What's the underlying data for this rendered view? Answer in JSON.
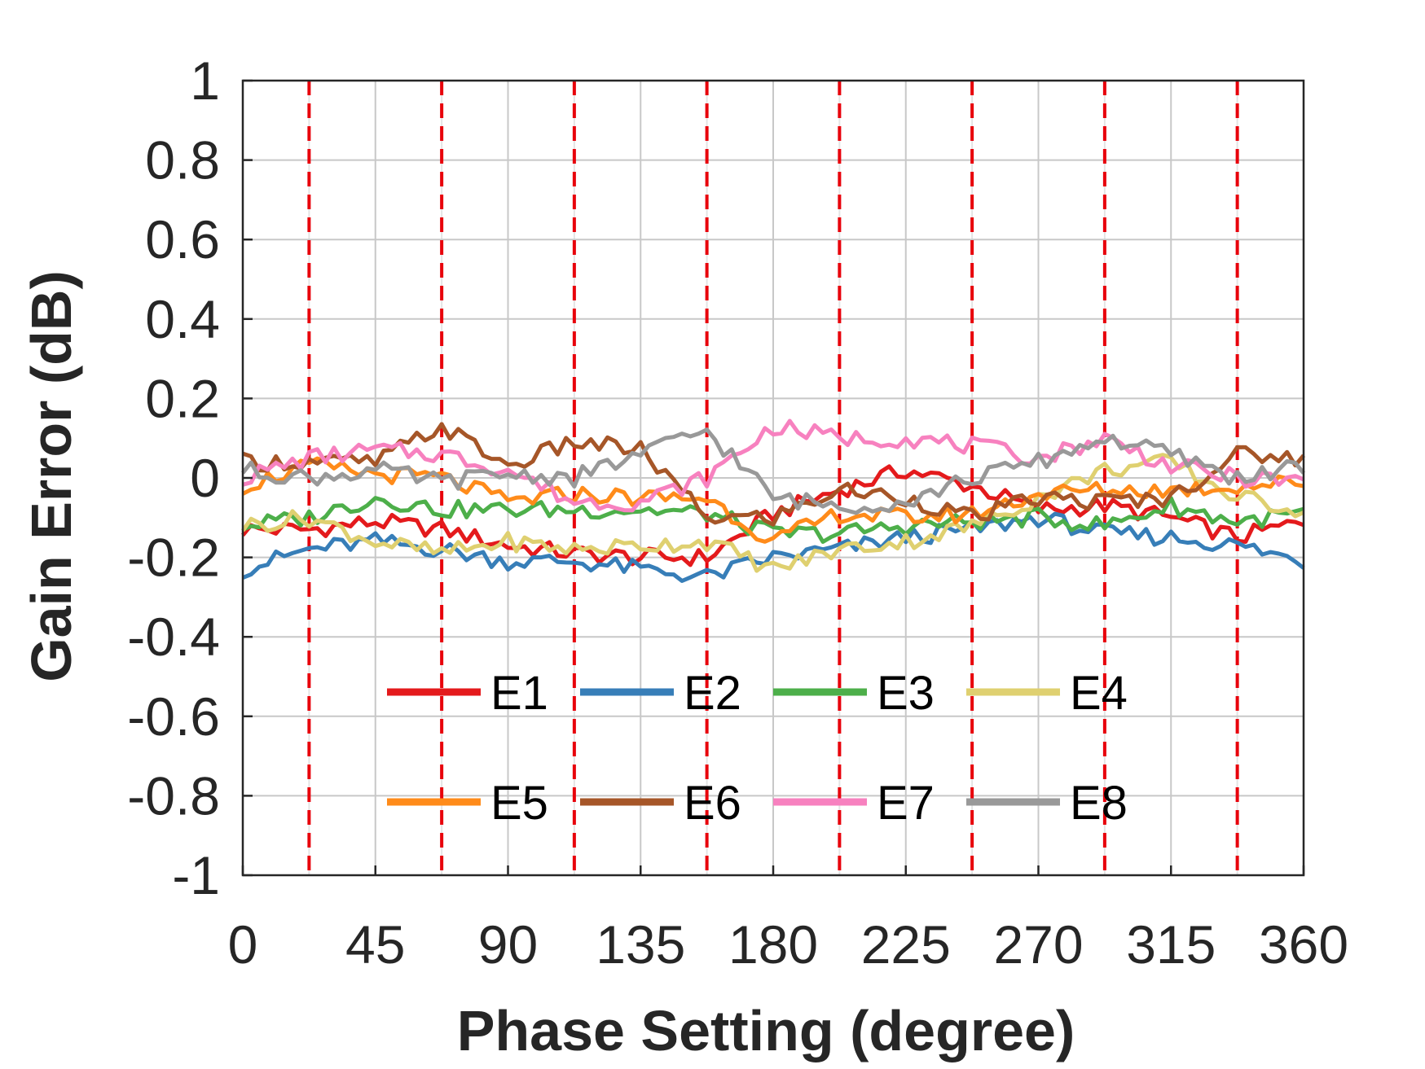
{
  "chart_data": {
    "type": "line",
    "title": "",
    "xlabel": "Phase Setting (degree)",
    "ylabel": "Gain Error (dB)",
    "xlim": [
      0,
      360
    ],
    "ylim": [
      -1,
      1
    ],
    "x_ticks": [
      0,
      45,
      90,
      135,
      180,
      225,
      270,
      315,
      360
    ],
    "x_tick_labels": [
      "0",
      "45",
      "90",
      "135",
      "180",
      "225",
      "270",
      "315",
      "360"
    ],
    "y_ticks": [
      -1,
      -0.8,
      -0.6,
      -0.4,
      -0.2,
      0,
      0.2,
      0.4,
      0.6,
      0.8,
      1
    ],
    "y_tick_labels": [
      "-1",
      "-0.8",
      "-0.6",
      "-0.4",
      "-0.2",
      "0",
      "0.2",
      "0.4",
      "0.6",
      "0.8",
      "1"
    ],
    "grid": true,
    "vertical_reference_lines": [
      22.5,
      67.5,
      112.5,
      157.5,
      202.5,
      247.5,
      292.5,
      337.5
    ],
    "reference_line_color": "#e8000b",
    "legend_placement": "lower-center",
    "series": [
      {
        "name": "E1",
        "color": "#e41a1c",
        "x": [
          0,
          22.5,
          45,
          67.5,
          90,
          112.5,
          135,
          157.5,
          180,
          202.5,
          225,
          247.5,
          270,
          292.5,
          315,
          337.5,
          360
        ],
        "values": [
          -0.13,
          -0.13,
          -0.11,
          -0.13,
          -0.17,
          -0.19,
          -0.2,
          -0.2,
          -0.09,
          -0.03,
          0.02,
          -0.02,
          -0.08,
          -0.07,
          -0.1,
          -0.15,
          -0.11
        ]
      },
      {
        "name": "E2",
        "color": "#377eb8",
        "x": [
          0,
          22.5,
          45,
          67.5,
          90,
          112.5,
          135,
          157.5,
          180,
          202.5,
          225,
          247.5,
          270,
          292.5,
          315,
          337.5,
          360
        ],
        "values": [
          -0.23,
          -0.18,
          -0.16,
          -0.18,
          -0.21,
          -0.21,
          -0.23,
          -0.25,
          -0.2,
          -0.18,
          -0.15,
          -0.13,
          -0.1,
          -0.14,
          -0.15,
          -0.17,
          -0.21
        ]
      },
      {
        "name": "E3",
        "color": "#4daf4a",
        "x": [
          0,
          22.5,
          45,
          67.5,
          90,
          112.5,
          135,
          157.5,
          180,
          202.5,
          225,
          247.5,
          270,
          292.5,
          315,
          337.5,
          360
        ],
        "values": [
          -0.12,
          -0.1,
          -0.05,
          -0.08,
          -0.08,
          -0.08,
          -0.08,
          -0.09,
          -0.14,
          -0.14,
          -0.12,
          -0.11,
          -0.1,
          -0.12,
          -0.07,
          -0.11,
          -0.09
        ]
      },
      {
        "name": "E4",
        "color": "#dfd070",
        "x": [
          0,
          22.5,
          45,
          67.5,
          90,
          112.5,
          135,
          157.5,
          180,
          202.5,
          225,
          247.5,
          270,
          292.5,
          315,
          337.5,
          360
        ],
        "values": [
          -0.12,
          -0.1,
          -0.16,
          -0.19,
          -0.16,
          -0.18,
          -0.17,
          -0.16,
          -0.23,
          -0.18,
          -0.16,
          -0.12,
          -0.05,
          0.02,
          0.04,
          -0.05,
          -0.08
        ]
      },
      {
        "name": "E5",
        "color": "#ff8b1a",
        "x": [
          0,
          22.5,
          45,
          67.5,
          90,
          112.5,
          135,
          157.5,
          180,
          202.5,
          225,
          247.5,
          270,
          292.5,
          315,
          337.5,
          360
        ],
        "values": [
          -0.02,
          0.03,
          0.01,
          0.0,
          -0.06,
          -0.04,
          -0.05,
          -0.05,
          -0.16,
          -0.09,
          -0.1,
          -0.09,
          -0.04,
          -0.03,
          -0.03,
          -0.02,
          -0.01
        ]
      },
      {
        "name": "E6",
        "color": "#a65628",
        "x": [
          0,
          22.5,
          45,
          67.5,
          90,
          112.5,
          135,
          157.5,
          180,
          202.5,
          225,
          247.5,
          270,
          292.5,
          315,
          337.5,
          360
        ],
        "values": [
          0.04,
          0.04,
          0.04,
          0.13,
          0.03,
          0.09,
          0.07,
          -0.1,
          -0.1,
          -0.03,
          -0.05,
          -0.1,
          -0.05,
          -0.06,
          -0.05,
          0.06,
          0.05
        ]
      },
      {
        "name": "E7",
        "color": "#f781bf",
        "x": [
          0,
          22.5,
          45,
          67.5,
          90,
          112.5,
          135,
          157.5,
          180,
          202.5,
          225,
          247.5,
          270,
          292.5,
          315,
          337.5,
          360
        ],
        "values": [
          0.0,
          0.05,
          0.07,
          0.06,
          0.02,
          -0.06,
          -0.06,
          0.0,
          0.13,
          0.1,
          0.1,
          0.08,
          0.05,
          0.1,
          0.03,
          0.0,
          -0.01
        ]
      },
      {
        "name": "E8",
        "color": "#999999",
        "x": [
          0,
          22.5,
          45,
          67.5,
          90,
          112.5,
          135,
          157.5,
          180,
          202.5,
          225,
          247.5,
          270,
          292.5,
          315,
          337.5,
          360
        ],
        "values": [
          0.02,
          0.0,
          0.02,
          -0.01,
          0.01,
          0.0,
          0.06,
          0.12,
          -0.05,
          -0.07,
          -0.06,
          0.0,
          0.04,
          0.1,
          0.06,
          0.0,
          0.03
        ]
      }
    ]
  }
}
